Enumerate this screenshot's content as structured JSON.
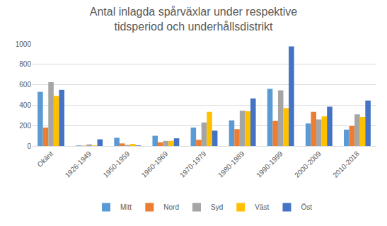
{
  "chart_data": {
    "type": "bar",
    "title": "Antal inlagda spårväxlar under respektive\ntidsperiod och underhållsdistrikt",
    "categories": [
      "Okänt",
      "1926-1949",
      "1950-1959",
      "1960-1969",
      "1970-1979",
      "1980-1989",
      "1990-1999",
      "2000-2009",
      "2010-2018"
    ],
    "series": [
      {
        "name": "Mitt",
        "color": "#5b9bd5",
        "values": [
          530,
          5,
          80,
          100,
          180,
          250,
          560,
          220,
          160
        ]
      },
      {
        "name": "Nord",
        "color": "#ed7d31",
        "values": [
          180,
          3,
          25,
          35,
          60,
          165,
          245,
          335,
          195
        ]
      },
      {
        "name": "Syd",
        "color": "#a5a5a5",
        "values": [
          625,
          15,
          10,
          50,
          230,
          345,
          545,
          260,
          310
        ]
      },
      {
        "name": "Väst",
        "color": "#ffc000",
        "values": [
          490,
          5,
          20,
          50,
          335,
          340,
          370,
          290,
          285
        ]
      },
      {
        "name": "Öst",
        "color": "#4472c4",
        "values": [
          550,
          65,
          5,
          75,
          150,
          465,
          975,
          385,
          445
        ]
      }
    ],
    "ylim": [
      0,
      1000
    ],
    "yticks": [
      0,
      200,
      400,
      600,
      800,
      1000
    ],
    "grid": true,
    "legend": "bottom"
  }
}
